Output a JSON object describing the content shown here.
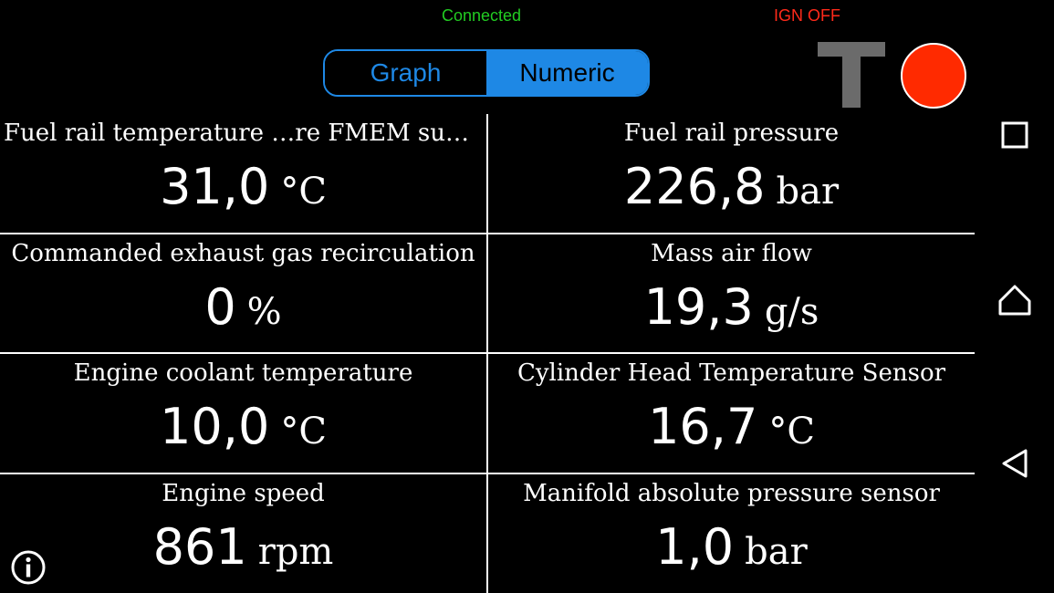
{
  "status": {
    "connection": "Connected",
    "connection_color": "#22cc22",
    "ignition": "IGN OFF",
    "ignition_color": "#ff2a1a"
  },
  "view_toggle": {
    "graph_label": "Graph",
    "numeric_label": "Numeric",
    "selected": "Numeric",
    "accent_color": "#1e88e5"
  },
  "toolbar": {
    "trigger_icon": "t-icon",
    "record_icon": "record-icon",
    "record_color": "#ff2a00"
  },
  "readings": [
    {
      "label": "Fuel rail temperature …re FMEM substitution",
      "value": "31,0",
      "unit": "°C"
    },
    {
      "label": "Fuel rail pressure",
      "value": "226,8",
      "unit": "bar"
    },
    {
      "label": "Commanded exhaust gas recirculation",
      "value": "0",
      "unit": "%"
    },
    {
      "label": "Mass air flow",
      "value": "19,3",
      "unit": "g/s"
    },
    {
      "label": "Engine coolant temperature",
      "value": "10,0",
      "unit": "°C"
    },
    {
      "label": "Cylinder Head Temperature Sensor",
      "value": "16,7",
      "unit": "°C"
    },
    {
      "label": "Engine speed",
      "value": "861",
      "unit": "rpm"
    },
    {
      "label": "Manifold absolute pressure sensor",
      "value": "1,0",
      "unit": "bar"
    }
  ],
  "navbar": {
    "recents_icon": "square-icon",
    "home_icon": "home-icon",
    "back_icon": "back-triangle-icon"
  },
  "info_icon": "info-icon"
}
